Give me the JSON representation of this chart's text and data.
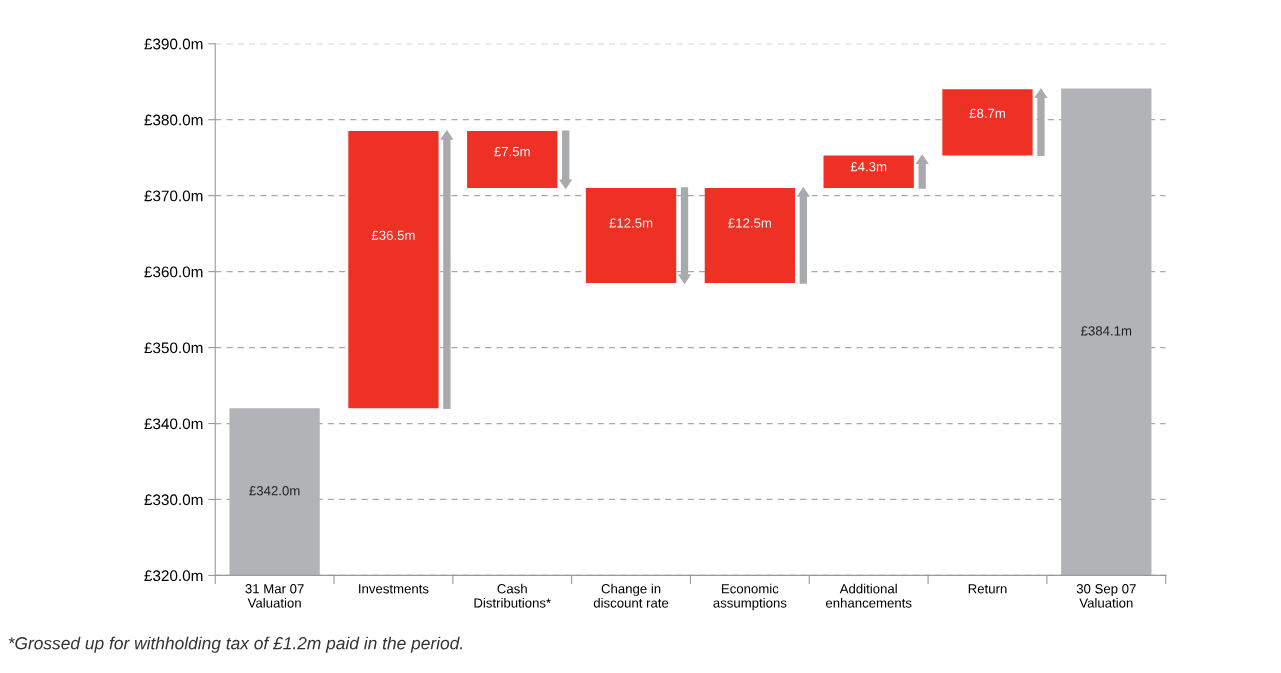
{
  "chart_data": {
    "type": "bar",
    "categories": [
      "31 Mar 07\nValuation",
      "Investments",
      "Cash\nDistributions*",
      "Change in\ndiscount rate",
      "Economic\nassumptions",
      "Additional\nenhancements",
      "Return",
      "30 Sep 07\nValuation"
    ],
    "values": [
      342.0,
      36.5,
      7.5,
      12.5,
      12.5,
      4.3,
      8.7,
      384.1
    ],
    "base": [
      null,
      342.0,
      371.0,
      358.5,
      358.5,
      371.0,
      375.3,
      null
    ],
    "colors": [
      "#b2b3b7",
      "#ee3124",
      "#ee3124",
      "#ee3124",
      "#ee3124",
      "#ee3124",
      "#ee3124",
      "#b2b3b7"
    ],
    "value_labels": [
      "£342.0m",
      "£36.5m",
      "£7.5m",
      "£12.5m",
      "£12.5m",
      "£4.3m",
      "£8.7m",
      "£384.1m"
    ],
    "ylim": [
      320,
      390
    ],
    "yticks": [
      {
        "value": 320,
        "label": "£320.0m"
      },
      {
        "value": 330,
        "label": "£330.0m"
      },
      {
        "value": 340,
        "label": "£340.0m"
      },
      {
        "value": 350,
        "label": "£350.0m"
      },
      {
        "value": 360,
        "label": "£360.0m"
      },
      {
        "value": 370,
        "label": "£370.0m"
      },
      {
        "value": 380,
        "label": "£380.0m"
      },
      {
        "value": 390,
        "label": "£390.0m"
      }
    ],
    "grid": "y",
    "annotations": [
      "*Grossed up for withholding tax of £1.2m paid in the period."
    ]
  }
}
